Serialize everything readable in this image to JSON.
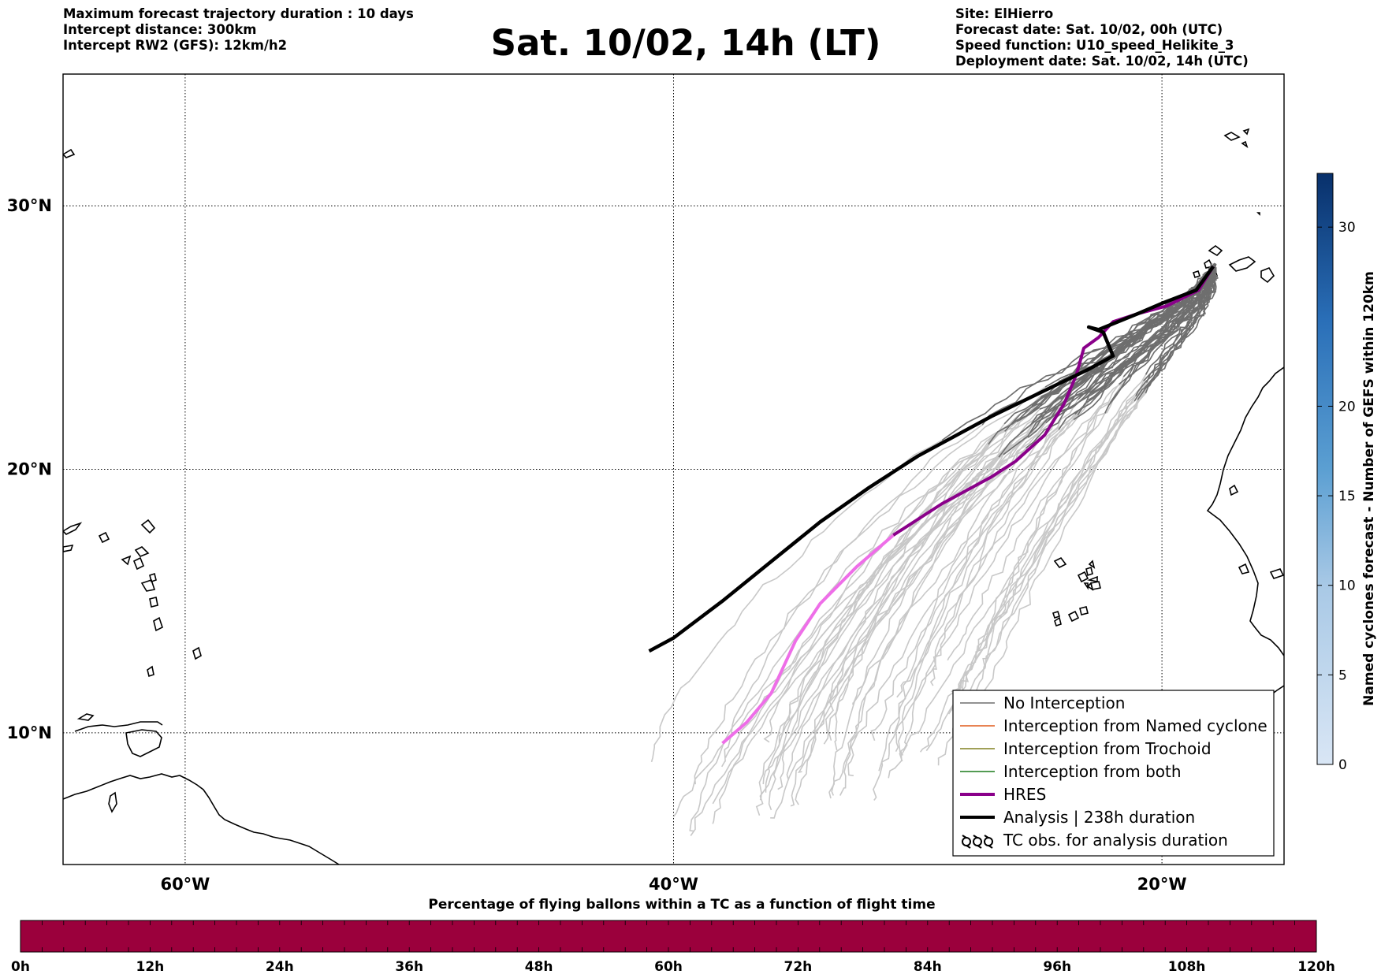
{
  "header_left": [
    "Maximum forecast trajectory duration : 10 days",
    "Intercept distance: 300km",
    "Intercept RW2 (GFS):  12km/h2"
  ],
  "title": "Sat. 10/02, 14h (LT)",
  "header_right": [
    "Site: ElHierro",
    "Forecast date: Sat. 10/02, 00h (UTC)",
    "Speed function: U10_speed_Helikite_3",
    "Deployment date: Sat. 10/02, 14h (UTC)"
  ],
  "map": {
    "lon_range": [
      -65,
      -15
    ],
    "lat_range": [
      5,
      35
    ],
    "lat_ticks": [
      {
        "value": 10,
        "label": "10°N"
      },
      {
        "value": 20,
        "label": "20°N"
      },
      {
        "value": 30,
        "label": "30°N"
      }
    ],
    "lon_ticks": [
      {
        "value": -60,
        "label": "60°W"
      },
      {
        "value": -40,
        "label": "40°W"
      },
      {
        "value": -20,
        "label": "20°W"
      }
    ],
    "colors": {
      "ensemble_light": "#c8c8c8",
      "ensemble_dark": "#6e6e6e",
      "hres_dark": "#8a008a",
      "hres_light": "#ee6ee8",
      "analysis": "#000000"
    },
    "tracks": {
      "site": {
        "lon": -17.9,
        "lat": 27.7
      },
      "hres": [
        [
          -17.9,
          27.7
        ],
        [
          -18.5,
          26.8
        ],
        [
          -19.8,
          26.2
        ],
        [
          -21.0,
          25.9
        ],
        [
          -22.0,
          25.6
        ],
        [
          -22.6,
          25.0
        ],
        [
          -23.2,
          24.6
        ],
        [
          -23.5,
          23.6
        ],
        [
          -24.0,
          22.5
        ],
        [
          -24.8,
          21.3
        ],
        [
          -26.0,
          20.3
        ],
        [
          -27.0,
          19.7
        ],
        [
          -29.0,
          18.7
        ],
        [
          -31.0,
          17.5
        ],
        [
          -32.5,
          16.3
        ],
        [
          -34.0,
          14.9
        ],
        [
          -35.0,
          13.5
        ],
        [
          -36.0,
          11.5
        ],
        [
          -37.0,
          10.4
        ],
        [
          -38.0,
          9.6
        ]
      ],
      "hres_dark_until": 14,
      "analysis": [
        [
          -17.9,
          27.7
        ],
        [
          -18.6,
          26.8
        ],
        [
          -20.0,
          26.3
        ],
        [
          -21.0,
          25.9
        ],
        [
          -22.6,
          25.3
        ],
        [
          -23.0,
          25.4
        ],
        [
          -22.4,
          25.2
        ],
        [
          -22.0,
          24.3
        ],
        [
          -23.0,
          23.8
        ],
        [
          -25.0,
          22.9
        ],
        [
          -27.0,
          22.0
        ],
        [
          -30.0,
          20.5
        ],
        [
          -32.0,
          19.3
        ],
        [
          -34.0,
          18.0
        ],
        [
          -36.0,
          16.5
        ],
        [
          -38.0,
          15.0
        ],
        [
          -40.0,
          13.6
        ],
        [
          -41.0,
          13.1
        ]
      ],
      "ensemble_count": 50
    },
    "legend": [
      {
        "label": "No Interception",
        "color": "#6e6e6e",
        "width": 1.5,
        "icon": "line"
      },
      {
        "label": "Interception from Named cyclone",
        "color": "#e05a1c",
        "width": 1.5,
        "icon": "line"
      },
      {
        "label": "Interception from Trochoid",
        "color": "#808020",
        "width": 1.5,
        "icon": "line"
      },
      {
        "label": "Interception from both",
        "color": "#1a7a1a",
        "width": 1.5,
        "icon": "line"
      },
      {
        "label": "HRES",
        "color": "#8a008a",
        "width": 4,
        "icon": "line"
      },
      {
        "label": "Analysis | 238h duration",
        "color": "#000000",
        "width": 4,
        "icon": "line"
      },
      {
        "label": "TC obs. for analysis duration",
        "color": "#000000",
        "width": 1,
        "icon": "tc-symbols"
      }
    ]
  },
  "colorbar": {
    "label": "Named cyclones forecast - Number of GEFS within 120km",
    "ticks": [
      0,
      5,
      10,
      15,
      20,
      30
    ],
    "max": 33,
    "color_low": "#d9e6f5",
    "color_high": "#08306b"
  },
  "percentage_bar": {
    "title": "Percentage of flying ballons within a TC as a function of flight time",
    "color": "#9b003c",
    "ticks": [
      "0h",
      "12h",
      "24h",
      "36h",
      "48h",
      "60h",
      "72h",
      "84h",
      "96h",
      "108h",
      "120h"
    ]
  }
}
